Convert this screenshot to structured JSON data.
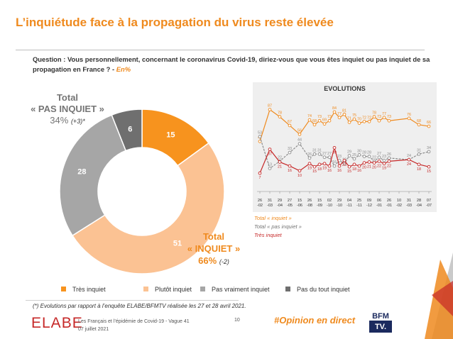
{
  "title": "L’inquiétude face à la propagation du virus reste élevée",
  "question": {
    "text": "Question : Vous personnellement, concernant le coronavirus Covid-19, diriez-vous que vous êtes inquiet ou pas inquiet de sa propagation en France ? -",
    "unit": "En%"
  },
  "donut": {
    "pas_inquiet": {
      "title_line1": "Total",
      "title_line2": "« PAS INQUIET »",
      "value": "34%",
      "delta": "(+3)*"
    },
    "inquiet": {
      "title_line1": "Total",
      "title_line2": "« INQUIET »",
      "value": "66%",
      "delta": "(-2)"
    }
  },
  "evolutions": {
    "title": "EVOLUTIONS",
    "legend": [
      "Total « inquiet »",
      "Total « pas inquiet »",
      "Très inquiet"
    ]
  },
  "legend": [
    {
      "label": "Très inquiet",
      "color": "#f7931e"
    },
    {
      "label": "Plutôt inquiet",
      "color": "#fbc293"
    },
    {
      "label": "Pas vraiment inquiet",
      "color": "#a6a6a6"
    },
    {
      "label": "Pas du tout inquiet",
      "color": "#6f6f6f"
    }
  ],
  "footnote": "(*) Evolutions par rapport à l’enquête ELABE/BFMTV réalisée les 27 et 28 avril 2021.",
  "footer": {
    "brand": "ELABE",
    "study": "Les Français et l’épidémie de Covid-19 - Vague 41",
    "date": "07 juillet 2021",
    "page": "10",
    "hashtag": "#Opinion en direct",
    "partner_logo_line1": "BFM",
    "partner_logo_line2": "TV."
  },
  "colors": {
    "accent": "#ef8a1e",
    "total_inquiet": "#ef8a1e",
    "total_pas_inquiet": "#8c8c8c",
    "tres_inquiet": "#c62828"
  },
  "chart_data": [
    {
      "type": "pie",
      "categories": [
        "Très inquiet",
        "Plutôt inquiet",
        "Pas vraiment inquiet",
        "Pas du tout inquiet"
      ],
      "values": [
        15,
        51,
        28,
        6
      ],
      "colors": [
        "#f7931e",
        "#fbc293",
        "#a6a6a6",
        "#6f6f6f"
      ]
    },
    {
      "type": "line",
      "title": "EVOLUTIONS",
      "x": [
        "26 -02",
        "31 -03",
        "29 -04",
        "27 -05",
        "15 -06",
        "26 -08",
        "15 -09",
        "02 -10",
        "29 -10",
        "04 -11",
        "25 -11",
        "09 -12",
        "06 -01",
        "26 -01",
        "10 -02",
        "31 -03",
        "28 -04",
        "07 -07"
      ],
      "series": [
        {
          "name": "Total « inquiet »",
          "color": "#ef8a1e",
          "dash": false,
          "marker": "circle",
          "points": [
            [
              0,
              47
            ],
            [
              1,
              87
            ],
            [
              2,
              78
            ],
            [
              3,
              67
            ],
            [
              4,
              56
            ],
            [
              5,
              74
            ],
            [
              5.5,
              68
            ],
            [
              6,
              73
            ],
            [
              6.5,
              69
            ],
            [
              7,
              73
            ],
            [
              7.5,
              84
            ],
            [
              8,
              77
            ],
            [
              8.5,
              81
            ],
            [
              9,
              71
            ],
            [
              9.5,
              75
            ],
            [
              10,
              70
            ],
            [
              10.5,
              72
            ],
            [
              11,
              72
            ],
            [
              11.5,
              78
            ],
            [
              12,
              73
            ],
            [
              12.5,
              77
            ],
            [
              13,
              73
            ],
            [
              15,
              76
            ],
            [
              16,
              68
            ],
            [
              17,
              66
            ]
          ],
          "labels": [
            "47",
            "87",
            "78",
            "67",
            "56",
            "74",
            "68",
            "73",
            "69",
            "73",
            "84",
            "77",
            "81",
            "71",
            "75",
            "70",
            "72",
            "72",
            "78",
            "73",
            "77",
            "73",
            "76",
            "68",
            "66"
          ]
        },
        {
          "name": "Total « pas inquiet »",
          "color": "#8c8c8c",
          "dash": true,
          "marker": "circle",
          "points": [
            [
              0,
              53
            ],
            [
              1,
              13
            ],
            [
              2,
              22
            ],
            [
              3,
              33
            ],
            [
              4,
              44
            ],
            [
              5,
              26
            ],
            [
              5.5,
              31
            ],
            [
              6,
              31
            ],
            [
              6.5,
              27
            ],
            [
              7,
              27
            ],
            [
              7.5,
              16
            ],
            [
              8,
              23
            ],
            [
              8.5,
              19
            ],
            [
              9,
              29
            ],
            [
              9.5,
              25
            ],
            [
              10,
              30
            ],
            [
              10.5,
              28
            ],
            [
              11,
              28
            ],
            [
              11.5,
              22
            ],
            [
              12,
              27
            ],
            [
              12.5,
              23
            ],
            [
              13,
              26
            ],
            [
              15,
              24
            ],
            [
              16,
              31
            ],
            [
              17,
              34
            ]
          ],
          "labels": [
            "53",
            "13",
            "22",
            "33",
            "44",
            "26",
            "31",
            "31",
            "27",
            "27",
            "16",
            "23",
            "19",
            "29",
            "25",
            "30",
            "28",
            "28",
            "22",
            "27",
            "23",
            "26",
            "24",
            "31",
            "34"
          ]
        },
        {
          "name": "Très inquiet",
          "color": "#c62828",
          "dash": false,
          "marker": "circle",
          "points": [
            [
              0,
              7
            ],
            [
              1,
              37
            ],
            [
              2,
              21
            ],
            [
              3,
              16
            ],
            [
              4,
              10
            ],
            [
              5,
              19
            ],
            [
              5.5,
              15
            ],
            [
              6,
              18
            ],
            [
              6.5,
              19
            ],
            [
              7,
              16
            ],
            [
              7.5,
              39
            ],
            [
              8,
              16
            ],
            [
              8.5,
              23
            ],
            [
              9,
              15
            ],
            [
              9.5,
              18
            ],
            [
              10,
              16
            ],
            [
              10.5,
              20
            ],
            [
              11,
              21
            ],
            [
              11.5,
              20
            ],
            [
              12,
              22
            ],
            [
              12.5,
              19
            ],
            [
              13,
              22
            ],
            [
              15,
              24
            ],
            [
              16,
              18
            ],
            [
              17,
              15
            ]
          ],
          "labels": [
            "7",
            "37",
            "21",
            "16",
            "10",
            "19",
            "15",
            "18",
            "19",
            "16",
            "39",
            "16",
            "23",
            "15",
            "18",
            "16",
            "20",
            "21",
            "20",
            "22",
            "19",
            "22",
            "24",
            "18",
            "15"
          ]
        }
      ],
      "ylim": [
        0,
        100
      ],
      "grid": false
    }
  ]
}
